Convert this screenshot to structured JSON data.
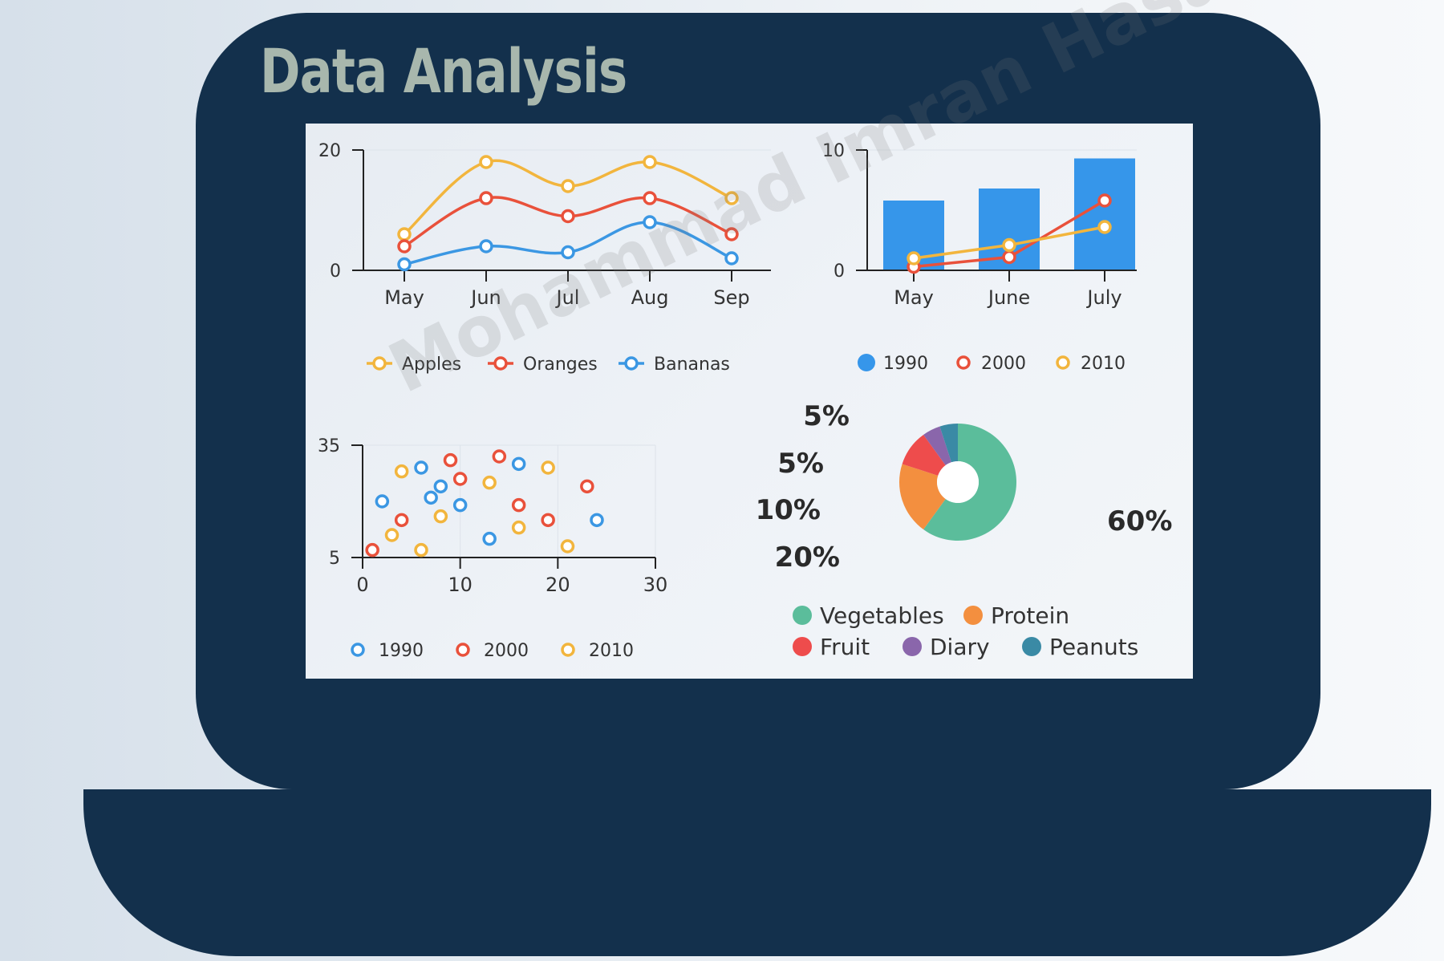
{
  "title": "Data Analysis",
  "watermark": "Mohammad Imran Hasan",
  "colors": {
    "frame": "#13304c",
    "title": "#a8b7ad",
    "apples": "#f2b53d",
    "oranges": "#e9513b",
    "bananas": "#3b97e3",
    "bar": "#3696ea",
    "vegetables": "#5bbd9b",
    "protein": "#f38f3f",
    "fruit": "#ee4c4c",
    "diary": "#8a66ab",
    "peanuts": "#3a8aa5"
  },
  "chart_data": [
    {
      "type": "line",
      "categories": [
        "May",
        "Jun",
        "Jul",
        "Aug",
        "Sep"
      ],
      "ylim": [
        0,
        20
      ],
      "yticks": [
        "0",
        "20"
      ],
      "series": [
        {
          "name": "Apples",
          "values": [
            6,
            18,
            14,
            18,
            12
          ]
        },
        {
          "name": "Oranges",
          "values": [
            4,
            12,
            9,
            12,
            6
          ]
        },
        {
          "name": "Bananas",
          "values": [
            1,
            4,
            3,
            8,
            2
          ]
        }
      ],
      "legend": "bottom"
    },
    {
      "type": "bar",
      "categories": [
        "May",
        "June",
        "July"
      ],
      "ylim": [
        0,
        10
      ],
      "yticks": [
        "0",
        "10"
      ],
      "series": [
        {
          "name": "1990",
          "type": "bar",
          "values": [
            5.8,
            6.8,
            9.3
          ]
        },
        {
          "name": "2000",
          "type": "line",
          "values": [
            0.3,
            1.1,
            5.8
          ]
        },
        {
          "name": "2010",
          "type": "line",
          "values": [
            1.0,
            2.1,
            3.6
          ]
        }
      ],
      "legend": "bottom"
    },
    {
      "type": "scatter",
      "xlim": [
        0,
        30
      ],
      "ylim": [
        5,
        35
      ],
      "xticks": [
        "0",
        "10",
        "20",
        "30"
      ],
      "yticks": [
        "5",
        "35"
      ],
      "series": [
        {
          "name": "1990",
          "points": [
            [
              2,
              20
            ],
            [
              6,
              29
            ],
            [
              7,
              21
            ],
            [
              8,
              24
            ],
            [
              10,
              19
            ],
            [
              13,
              10
            ],
            [
              16,
              30
            ],
            [
              24,
              15
            ]
          ]
        },
        {
          "name": "2000",
          "points": [
            [
              1,
              7
            ],
            [
              4,
              15
            ],
            [
              9,
              31
            ],
            [
              10,
              26
            ],
            [
              14,
              32
            ],
            [
              16,
              19
            ],
            [
              19,
              15
            ],
            [
              23,
              24
            ]
          ]
        },
        {
          "name": "2010",
          "points": [
            [
              3,
              11
            ],
            [
              4,
              28
            ],
            [
              6,
              7
            ],
            [
              8,
              16
            ],
            [
              13,
              25
            ],
            [
              16,
              13
            ],
            [
              19,
              29
            ],
            [
              21,
              8
            ]
          ]
        }
      ],
      "legend": "bottom"
    },
    {
      "type": "pie",
      "donut": true,
      "slices": [
        {
          "name": "Vegetables",
          "value": 60,
          "label": "60%"
        },
        {
          "name": "Protein",
          "value": 20,
          "label": "20%"
        },
        {
          "name": "Fruit",
          "value": 10,
          "label": "10%"
        },
        {
          "name": "Diary",
          "value": 5,
          "label": "5%"
        },
        {
          "name": "Peanuts",
          "value": 5,
          "label": "5%"
        }
      ],
      "legend": "bottom"
    }
  ]
}
